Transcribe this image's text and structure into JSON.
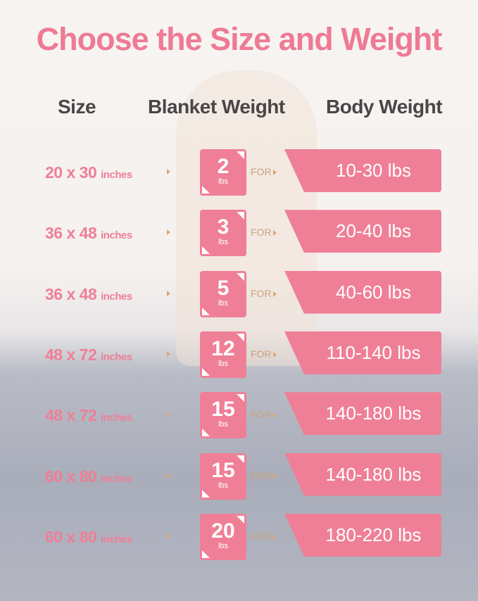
{
  "title": "Choose the Size and Weight",
  "headers": {
    "size": "Size",
    "blanket": "Blanket Weight",
    "body": "Body Weight"
  },
  "for_label": "FOR",
  "unit": "lbs",
  "size_unit": "inches",
  "accent": "#ef7f97",
  "rows": [
    {
      "size": "20 x 30",
      "weight": "2",
      "body": "10-30 lbs"
    },
    {
      "size": "36 x 48",
      "weight": "3",
      "body": "20-40 lbs"
    },
    {
      "size": "36 x 48",
      "weight": "5",
      "body": "40-60 lbs"
    },
    {
      "size": "48 x 72",
      "weight": "12",
      "body": "110-140 lbs"
    },
    {
      "size": "48 x 72",
      "weight": "15",
      "body": "140-180 lbs"
    },
    {
      "size": "60 x 80",
      "weight": "15",
      "body": "140-180 lbs"
    },
    {
      "size": "60 x 80",
      "weight": "20",
      "body": "180-220 lbs"
    }
  ]
}
